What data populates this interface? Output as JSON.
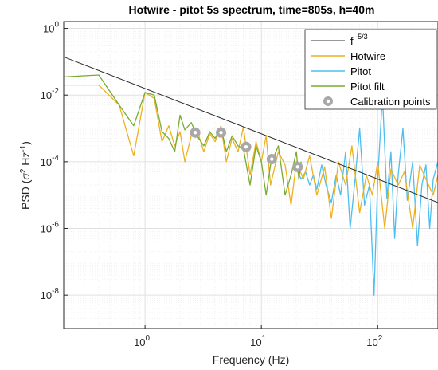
{
  "chart_data": {
    "type": "line",
    "title": "Hotwire - pitot 5s spectrum, time=805s, h=40m",
    "xlabel": "Frequency (Hz)",
    "ylabel_prefix": "PSD (",
    "ylabel_sigma": "σ",
    "ylabel_mid": " Hz",
    "ylabel_sup1": "2",
    "ylabel_sup2": "-1",
    "ylabel_suffix": ")",
    "x_scale": "log",
    "y_scale": "log",
    "xlim": [
      0.2,
      330
    ],
    "ylim": [
      1e-09,
      1.6
    ],
    "grid": true,
    "legend_position": "top-right",
    "x_ticks": [
      {
        "value": 1,
        "base": "10",
        "exp": "0"
      },
      {
        "value": 10,
        "base": "10",
        "exp": "1"
      },
      {
        "value": 100,
        "base": "10",
        "exp": "2"
      }
    ],
    "y_ticks": [
      {
        "value": 1e-08,
        "base": "10",
        "exp": "-8"
      },
      {
        "value": 1e-06,
        "base": "10",
        "exp": "-6"
      },
      {
        "value": 0.0001,
        "base": "10",
        "exp": "-4"
      },
      {
        "value": 0.01,
        "base": "10",
        "exp": "-2"
      },
      {
        "value": 1,
        "base": "10",
        "exp": "0"
      }
    ],
    "colors": {
      "reference": "#303030",
      "hotwire": "#EDB120",
      "pitot": "#4DBEEE",
      "pitot_filt": "#77AC30",
      "calibration": "#A8A8A8"
    },
    "series": [
      {
        "key": "ref",
        "name": "f",
        "name_sup": "-5/3",
        "style": "line",
        "x": [
          0.2,
          330
        ],
        "y": [
          0.14,
          6e-06
        ]
      },
      {
        "key": "pitot",
        "name": "Pitot",
        "style": "line",
        "x": [
          20,
          22,
          24,
          26,
          28,
          30,
          33,
          36,
          40,
          44,
          48,
          53,
          58,
          64,
          70,
          77,
          85,
          93,
          100,
          110,
          120,
          130,
          140,
          150,
          165,
          180,
          200,
          220,
          240,
          260,
          280,
          300,
          330
        ],
        "y": [
          6e-05,
          3e-05,
          5e-05,
          2e-05,
          4e-05,
          1.5e-05,
          8e-05,
          2e-05,
          6e-06,
          4e-05,
          1e-05,
          0.0002,
          1e-06,
          3e-05,
          0.001,
          5e-06,
          2e-05,
          1e-08,
          3e-05,
          0.01,
          8e-06,
          0.0002,
          5e-07,
          4e-05,
          0.001,
          7e-06,
          0.0001,
          3e-07,
          2e-05,
          8e-05,
          1e-06,
          3e-05,
          0.0001
        ]
      },
      {
        "key": "hotwire",
        "name": "Hotwire",
        "style": "line",
        "x": [
          0.2,
          0.4,
          0.6,
          0.8,
          1.0,
          1.2,
          1.4,
          1.6,
          1.8,
          2.0,
          2.2,
          2.5,
          2.8,
          3.2,
          3.6,
          4.0,
          4.5,
          5.0,
          5.6,
          6.3,
          7.0,
          8.0,
          9.0,
          10,
          11,
          12,
          14,
          16,
          18,
          20,
          23,
          26,
          30,
          35,
          40,
          46,
          53,
          60,
          70,
          80,
          90,
          100,
          115,
          130,
          150,
          170,
          200,
          230,
          260,
          300,
          330
        ],
        "y": [
          0.02,
          0.02,
          0.005,
          0.00015,
          0.012,
          0.008,
          0.0004,
          0.0012,
          0.0003,
          0.0008,
          0.0001,
          0.0006,
          0.0009,
          0.0002,
          0.0007,
          0.0004,
          0.0012,
          0.0001,
          0.0005,
          0.0002,
          0.0011,
          4e-05,
          0.0004,
          0.0001,
          0.0006,
          2e-05,
          0.0002,
          8e-05,
          5e-06,
          0.0001,
          3e-05,
          0.00015,
          1e-05,
          7e-05,
          2e-06,
          0.0001,
          2e-05,
          0.0003,
          3e-06,
          4e-05,
          1e-05,
          0.0001,
          1e-06,
          6e-05,
          2e-05,
          5e-05,
          1e-06,
          8e-05,
          3e-05,
          1e-05,
          4e-05
        ]
      },
      {
        "key": "pitot_filt",
        "name": "Pitot filt",
        "style": "line",
        "x": [
          0.2,
          0.4,
          0.6,
          0.8,
          1.0,
          1.2,
          1.4,
          1.6,
          1.8,
          2.0,
          2.2,
          2.5,
          2.8,
          3.2,
          3.6,
          4.0,
          4.5,
          5.0,
          5.6,
          6.3,
          7.0,
          8.0,
          9.0,
          10,
          11,
          12,
          14,
          16,
          18,
          20,
          21,
          22
        ],
        "y": [
          0.035,
          0.04,
          0.005,
          0.0012,
          0.012,
          0.01,
          0.0008,
          0.0005,
          0.0002,
          0.0025,
          0.0009,
          0.0015,
          0.0006,
          0.0003,
          0.0008,
          0.0005,
          0.0011,
          0.0002,
          0.0006,
          0.0003,
          0.00025,
          2e-05,
          0.0003,
          0.0001,
          1e-05,
          8e-05,
          0.0003,
          1e-05,
          4e-05,
          0.0002,
          3e-05,
          0.0001
        ]
      },
      {
        "key": "cal",
        "name": "Calibration points",
        "style": "marker",
        "x": [
          2.7,
          4.5,
          7.4,
          12.3,
          20.5
        ],
        "y": [
          0.00075,
          0.00075,
          0.00028,
          0.00012,
          7e-05
        ]
      }
    ]
  }
}
